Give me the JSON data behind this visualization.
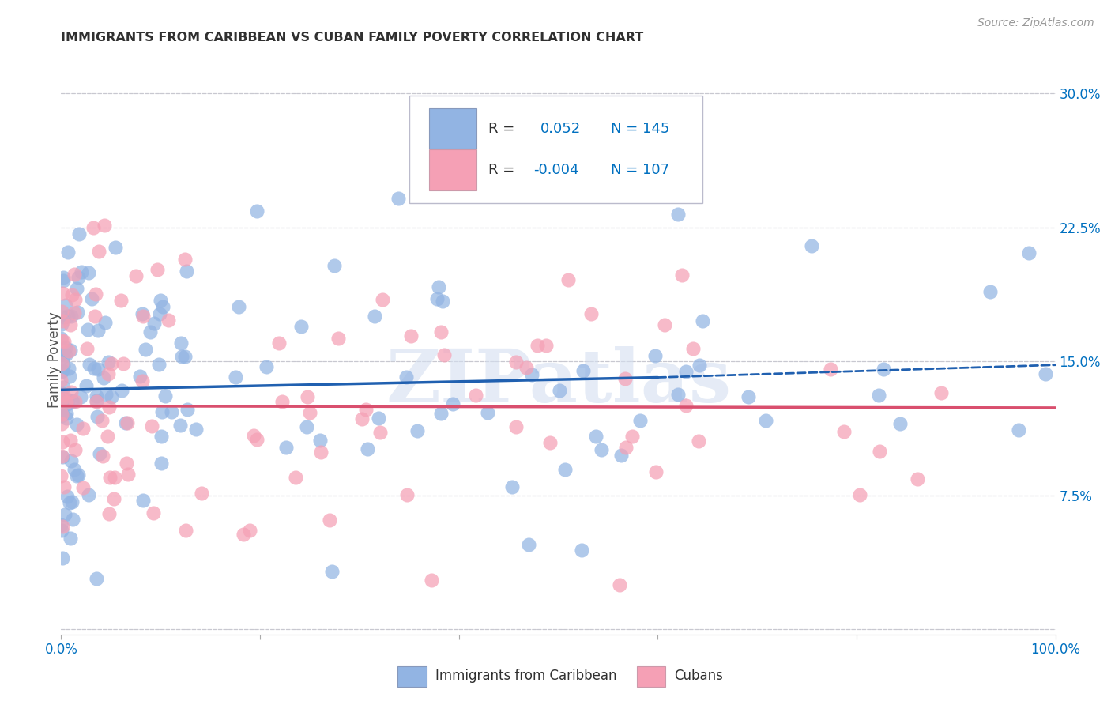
{
  "title": "IMMIGRANTS FROM CARIBBEAN VS CUBAN FAMILY POVERTY CORRELATION CHART",
  "source": "Source: ZipAtlas.com",
  "ylabel": "Family Poverty",
  "xlabel": "",
  "xmin": 0.0,
  "xmax": 1.0,
  "ymin": 0.0,
  "ymax": 0.3,
  "yticks": [
    0.0,
    0.075,
    0.15,
    0.225,
    0.3
  ],
  "ytick_labels": [
    "",
    "7.5%",
    "15.0%",
    "22.5%",
    "30.0%"
  ],
  "xtick_positions": [
    0.0,
    0.2,
    0.4,
    0.6,
    0.8,
    1.0
  ],
  "xtick_labels": [
    "0.0%",
    "",
    "",
    "",
    "",
    "100.0%"
  ],
  "series1_label": "Immigrants from Caribbean",
  "series2_label": "Cubans",
  "series1_color": "#92b4e3",
  "series2_color": "#f5a0b5",
  "series1_line_color": "#2060b0",
  "series2_line_color": "#d94f6e",
  "series1_R": 0.052,
  "series1_N": 145,
  "series2_R": -0.004,
  "series2_N": 107,
  "legend_R_color": "#0070c0",
  "legend_N_color": "#0070c0",
  "text_color": "#303030",
  "watermark": "ZIPatlas",
  "background_color": "#ffffff",
  "grid_color": "#c8c8d0",
  "title_color": "#303030",
  "title_fontsize": 11.5,
  "source_fontsize": 10,
  "seed1": 42,
  "seed2": 99,
  "line1_solid_end": 0.6,
  "line1_y_start": 0.134,
  "line1_y_end_solid": 0.141,
  "line1_y_end_dashed": 0.148,
  "line2_y_start": 0.125,
  "line2_y_end": 0.124
}
